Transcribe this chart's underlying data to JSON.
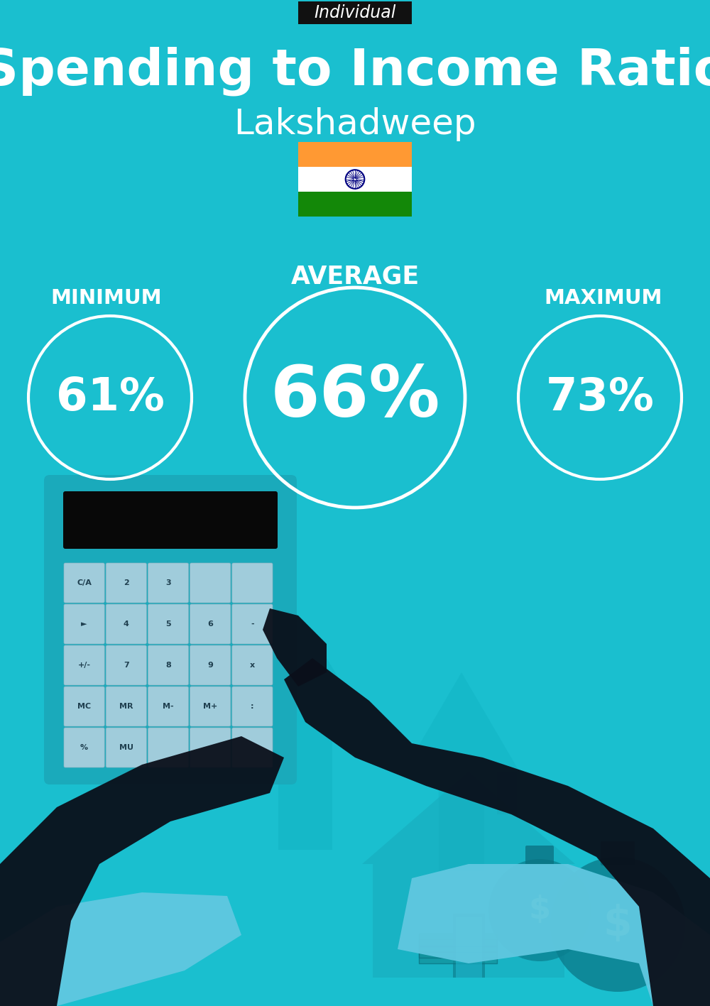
{
  "bg_color": "#1ABFCF",
  "title": "Spending to Income Ratio",
  "subtitle": "Lakshadweep",
  "tag_text": "Individual",
  "tag_bg": "#111111",
  "tag_text_color": "#ffffff",
  "title_color": "#ffffff",
  "subtitle_color": "#ffffff",
  "min_label": "MINIMUM",
  "avg_label": "AVERAGE",
  "max_label": "MAXIMUM",
  "min_value": "61%",
  "avg_value": "66%",
  "max_value": "73%",
  "circle_color": "#ffffff",
  "circle_text_color": "#ffffff",
  "label_color": "#ffffff",
  "flag_colors": [
    "#FF9933",
    "#ffffff",
    "#138808"
  ],
  "flag_chakra_color": "#000080",
  "arrow_color": "#17AABB",
  "house_color": "#17AABB",
  "calc_body_color": "#1AAABB",
  "calc_display_color": "#080808",
  "calc_btn_color": "#B8DCE8",
  "hand_color": "#0A0F1A",
  "cuff_color": "#60C8E0"
}
